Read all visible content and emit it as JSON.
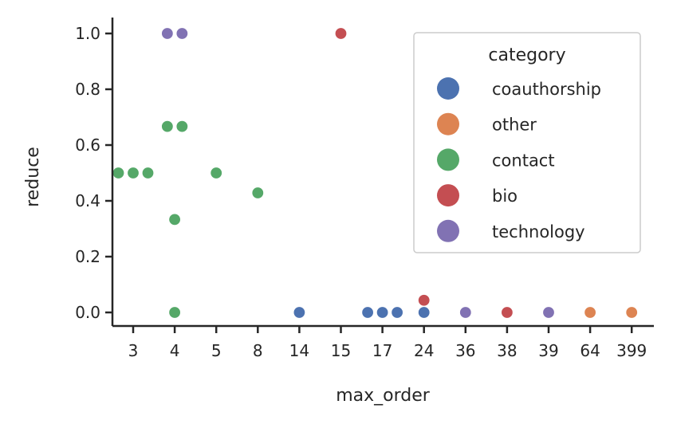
{
  "chart_data": {
    "type": "scatter",
    "xlabel": "max_order",
    "ylabel": "reduce",
    "x_categories": [
      "3",
      "4",
      "5",
      "8",
      "14",
      "15",
      "17",
      "24",
      "36",
      "38",
      "39",
      "64",
      "399"
    ],
    "y_ticks": [
      "0.0",
      "0.2",
      "0.4",
      "0.6",
      "0.8",
      "1.0"
    ],
    "ylim": [
      -0.05,
      1.05
    ],
    "grid": false,
    "legend": {
      "title": "category",
      "position": "top-right",
      "entries": [
        "coauthorship",
        "other",
        "contact",
        "bio",
        "technology"
      ]
    },
    "colors": {
      "coauthorship": "#4c72b0",
      "other": "#dd8452",
      "contact": "#55a868",
      "bio": "#c44e52",
      "technology": "#8172b3"
    },
    "points": [
      {
        "x": "3",
        "y": 0.5,
        "category": "contact"
      },
      {
        "x": "3",
        "y": 0.5,
        "category": "contact"
      },
      {
        "x": "3",
        "y": 0.5,
        "category": "contact"
      },
      {
        "x": "4",
        "y": 0.6667,
        "category": "contact"
      },
      {
        "x": "4",
        "y": 0.6667,
        "category": "contact"
      },
      {
        "x": "4",
        "y": 0.3333,
        "category": "contact"
      },
      {
        "x": "4",
        "y": 0.0,
        "category": "contact"
      },
      {
        "x": "4",
        "y": 1.0,
        "category": "technology"
      },
      {
        "x": "4",
        "y": 1.0,
        "category": "technology"
      },
      {
        "x": "5",
        "y": 0.5,
        "category": "contact"
      },
      {
        "x": "8",
        "y": 0.4286,
        "category": "contact"
      },
      {
        "x": "14",
        "y": 0.0,
        "category": "coauthorship"
      },
      {
        "x": "15",
        "y": 1.0,
        "category": "bio"
      },
      {
        "x": "17",
        "y": 0.0,
        "category": "coauthorship"
      },
      {
        "x": "17",
        "y": 0.0,
        "category": "coauthorship"
      },
      {
        "x": "17",
        "y": 0.0,
        "category": "coauthorship"
      },
      {
        "x": "24",
        "y": 0.0,
        "category": "coauthorship"
      },
      {
        "x": "24",
        "y": 0.0435,
        "category": "bio"
      },
      {
        "x": "36",
        "y": 0.0,
        "category": "technology"
      },
      {
        "x": "38",
        "y": 0.0,
        "category": "bio"
      },
      {
        "x": "39",
        "y": 0.0,
        "category": "technology"
      },
      {
        "x": "64",
        "y": 0.0,
        "category": "other"
      },
      {
        "x": "399",
        "y": 0.0,
        "category": "other"
      }
    ]
  }
}
